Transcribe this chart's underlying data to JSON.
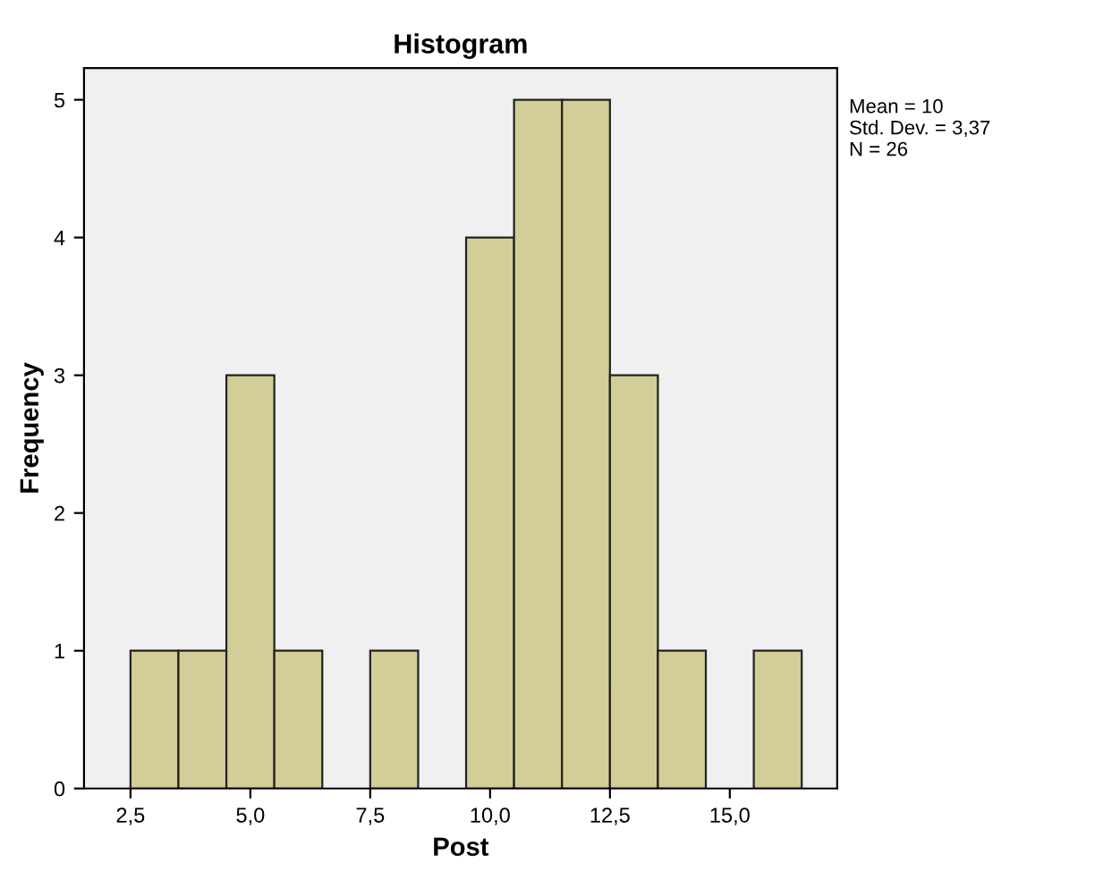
{
  "chart_data": {
    "type": "histogram",
    "title": "Histogram",
    "xlabel": "Post",
    "ylabel": "Frequency",
    "bins": [
      2.5,
      3.5,
      4.5,
      5.5,
      6.5,
      7.5,
      8.5,
      9.5,
      10.5,
      11.5,
      12.5,
      13.5,
      14.5,
      15.5,
      16.5
    ],
    "values": [
      1,
      1,
      3,
      1,
      0,
      1,
      0,
      4,
      5,
      5,
      3,
      1,
      0,
      1
    ],
    "color": "#d3ce97",
    "xlim": [
      1.53,
      17.24
    ],
    "xticks": [
      {
        "value": 2.5,
        "label": "2,5"
      },
      {
        "value": 5.0,
        "label": "5,0"
      },
      {
        "value": 7.5,
        "label": "7,5"
      },
      {
        "value": 10.0,
        "label": "10,0"
      },
      {
        "value": 12.5,
        "label": "12,5"
      },
      {
        "value": 15.0,
        "label": "15,0"
      }
    ],
    "ylim": [
      0,
      5.23
    ],
    "yticks": [
      0,
      1,
      2,
      3,
      4,
      5
    ],
    "grid": false,
    "annotations": [
      "Mean = 10\nStd. Dev. = 3,37\nN = 26"
    ]
  }
}
